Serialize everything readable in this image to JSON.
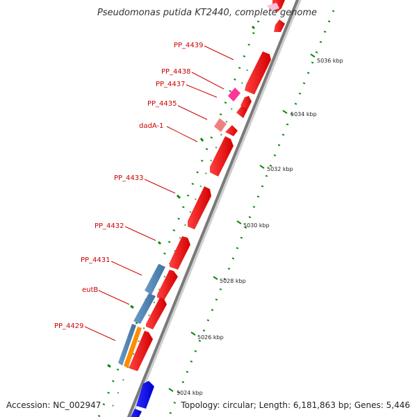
{
  "title": "Pseudomonas putida KT2440, complete genome",
  "footer": {
    "accession": "Accession: NC_002947",
    "topology": "Topology: circular; Length: 6,181,863 bp; Genes: 5,446"
  },
  "gene_labels": {
    "pp4439": "PP_4439",
    "pp4438": "PP_4438",
    "pp4437": "PP_4437",
    "pp4435": "PP_4435",
    "dada1": "dadA-1",
    "pp4433": "PP_4433",
    "pp4432": "PP_4432",
    "pp4431": "PP_4431",
    "eutb": "eutB",
    "pp4429": "PP_4429"
  },
  "kbp_labels": {
    "k5036": "5036 kbp",
    "k5034": "5034 kbp",
    "k5032": "5032 kbp",
    "k5030": "5030 kbp",
    "k5028": "5028 kbp",
    "k5026": "5026 kbp",
    "k5024": "5024 kbp"
  },
  "colors": {
    "gene_red": "#ff0000",
    "gene_pink": "#ff3399",
    "gene_light_red": "#f08080",
    "gene_blue": "#0000ff",
    "orf_steelblue": "#4682b4",
    "orf_orange": "#ff8c00",
    "tick_green": "#0a8a0a",
    "label_red": "#cc0000"
  }
}
